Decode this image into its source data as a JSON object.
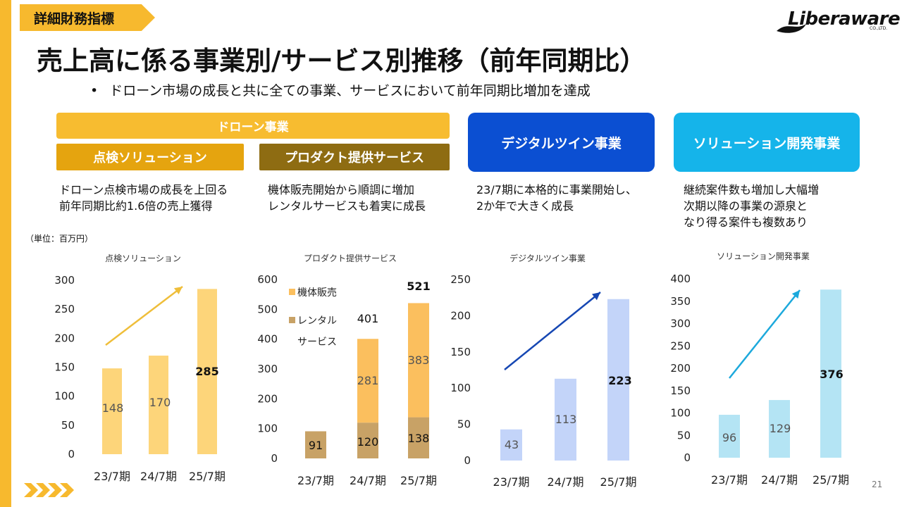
{
  "header": {
    "tag": "詳細財務指標",
    "title": "売上高に係る事業別/サービス別推移（前年同期比）",
    "bullet": "ドローン市場の成長と共に全ての事業、サービスにおいて前年同期比増加を達成",
    "logo": "Liberaware",
    "logo_sub": "CO.,LTD."
  },
  "segments": {
    "drone": "ドローン事業",
    "inspection": "点検ソリューション",
    "product": "プロダクト提供サービス",
    "digital_twin": "デジタルツイン事業",
    "solution": "ソリューション開発事業"
  },
  "descriptions": {
    "inspection": [
      "ドローン点検市場の成長を上回る",
      "前年同期比約1.6倍の売上獲得"
    ],
    "product": [
      "機体販売開始から順調に増加",
      "レンタルサービスも着実に成長"
    ],
    "digital_twin": [
      "23/7期に本格的に事業開始し、",
      "2か年で大きく成長"
    ],
    "solution": [
      "継続案件数も増加し大幅増",
      "次期以降の事業の源泉と",
      "なり得る案件も複数あり"
    ]
  },
  "unit_label": "（単位：百万円）",
  "page_number": "21",
  "colors": {
    "accent": "#f7b92e",
    "inspection_bar": "#fdd57a",
    "product_machine": "#fbbf5e",
    "product_rental": "#c8a266",
    "digital_bar": "#c3d4f9",
    "solution_bar": "#b4e4f4"
  },
  "chart_data": [
    {
      "type": "bar",
      "title": "点検ソリューション",
      "categories": [
        "23/7期",
        "24/7期",
        "25/7期"
      ],
      "values": [
        148,
        170,
        285
      ],
      "data_labels": [
        "148",
        "170",
        "285"
      ],
      "ylim": [
        0,
        300
      ],
      "yticks": [
        "0",
        "50",
        "100",
        "150",
        "200",
        "250",
        "300"
      ],
      "trend_arrow": true,
      "color": "#fdd57a",
      "arrow_color": "#efbe3a"
    },
    {
      "type": "bar",
      "stacked": true,
      "title": "プロダクト提供サービス",
      "categories": [
        "23/7期",
        "24/7期",
        "25/7期"
      ],
      "series": [
        {
          "name": "レンタルサービス",
          "legend": [
            "レンタル",
            "サービス"
          ],
          "values": [
            91,
            120,
            138
          ],
          "color": "#c8a266"
        },
        {
          "name": "機体販売",
          "legend": [
            "機体販売"
          ],
          "values": [
            0,
            281,
            383
          ],
          "color": "#fbbf5e"
        }
      ],
      "segment_labels": [
        [
          "91",
          "120",
          "138"
        ],
        [
          "",
          "281",
          "383"
        ]
      ],
      "totals": [
        "",
        "401",
        "521"
      ],
      "ylim": [
        0,
        600
      ],
      "yticks": [
        "0",
        "100",
        "200",
        "300",
        "400",
        "500",
        "600"
      ],
      "legend_position": "top-left"
    },
    {
      "type": "bar",
      "title": "デジタルツイン事業",
      "categories": [
        "23/7期",
        "24/7期",
        "25/7期"
      ],
      "values": [
        43,
        113,
        223
      ],
      "data_labels": [
        "43",
        "113",
        "223"
      ],
      "ylim": [
        0,
        250
      ],
      "yticks": [
        "0",
        "50",
        "100",
        "150",
        "200",
        "250"
      ],
      "trend_arrow": true,
      "color": "#c3d4f9",
      "arrow_color": "#1647b3"
    },
    {
      "type": "bar",
      "title": "ソリューション開発事業",
      "categories": [
        "23/7期",
        "24/7期",
        "25/7期"
      ],
      "values": [
        96,
        129,
        376
      ],
      "data_labels": [
        "96",
        "129",
        "376"
      ],
      "ylim": [
        0,
        400
      ],
      "yticks": [
        "0",
        "50",
        "100",
        "150",
        "200",
        "250",
        "300",
        "350",
        "400"
      ],
      "trend_arrow": true,
      "color": "#b4e4f4",
      "arrow_color": "#1ca9dc"
    }
  ]
}
